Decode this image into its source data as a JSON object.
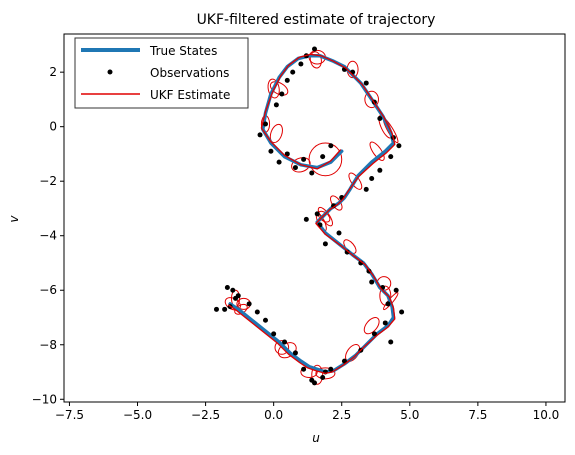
{
  "chart_data": {
    "type": "line",
    "title": "UKF-filtered estimate of trajectory",
    "xlabel": "u",
    "ylabel": "v",
    "xlim": [
      -7.7,
      10.7
    ],
    "ylim": [
      -10.1,
      3.4
    ],
    "xticks": [
      -7.5,
      -5.0,
      -2.5,
      0.0,
      2.5,
      5.0,
      7.5,
      10.0
    ],
    "xtick_labels": [
      "−7.5",
      "−5.0",
      "−2.5",
      "0.0",
      "2.5",
      "5.0",
      "7.5",
      "10.0"
    ],
    "yticks": [
      -10,
      -8,
      -6,
      -4,
      -2,
      0,
      2
    ],
    "ytick_labels": [
      "−10",
      "−8",
      "−6",
      "−4",
      "−2",
      "0",
      "2"
    ],
    "grid": false,
    "legend": {
      "placement": "upper left"
    },
    "series": [
      {
        "name": "True States",
        "kind": "line",
        "color": "#1f77b4",
        "x": [
          2.5,
          2.1,
          1.6,
          1.0,
          0.4,
          -0.1,
          -0.4,
          -0.3,
          -0.1,
          0.2,
          0.5,
          0.9,
          1.3,
          1.7,
          2.2,
          2.6,
          3.2,
          3.6,
          4.0,
          4.3,
          4.4,
          4.1,
          3.6,
          3.1,
          2.8,
          2.6,
          2.4,
          2.1,
          1.8,
          1.6,
          1.9,
          2.4,
          2.9,
          3.3,
          3.6,
          3.9,
          4.2,
          4.35,
          4.4,
          4.2,
          3.8,
          3.4,
          3.0,
          2.6,
          2.2,
          1.9,
          1.6,
          1.3,
          1.0,
          0.6,
          0.2,
          -0.3,
          -0.8,
          -1.3,
          -1.6
        ],
        "y": [
          -0.9,
          -1.3,
          -1.5,
          -1.4,
          -1.1,
          -0.6,
          -0.1,
          0.5,
          1.2,
          1.8,
          2.2,
          2.5,
          2.6,
          2.6,
          2.4,
          2.2,
          1.6,
          1.0,
          0.4,
          -0.2,
          -0.6,
          -0.9,
          -1.3,
          -1.8,
          -2.3,
          -2.6,
          -2.8,
          -3.0,
          -3.3,
          -3.5,
          -3.9,
          -4.3,
          -4.7,
          -5.0,
          -5.4,
          -5.9,
          -6.2,
          -6.6,
          -7.0,
          -7.3,
          -7.6,
          -8.0,
          -8.4,
          -8.7,
          -8.95,
          -9.0,
          -8.9,
          -8.8,
          -8.6,
          -8.3,
          -7.9,
          -7.5,
          -7.1,
          -6.7,
          -6.5
        ]
      },
      {
        "name": "Observations",
        "kind": "scatter",
        "color": "#000000",
        "x": [
          1.5,
          1.2,
          1.0,
          0.7,
          0.5,
          0.3,
          0.1,
          -0.3,
          -0.5,
          -0.1,
          0.2,
          0.5,
          0.8,
          1.1,
          1.4,
          1.8,
          2.1,
          2.6,
          2.9,
          3.4,
          3.7,
          3.9,
          4.4,
          4.6,
          4.3,
          3.9,
          3.6,
          3.4,
          2.5,
          2.2,
          1.6,
          1.2,
          1.7,
          2.4,
          1.9,
          2.7,
          3.2,
          3.5,
          3.6,
          4.0,
          4.5,
          4.2,
          4.7,
          4.1,
          3.7,
          4.3,
          3.2,
          2.6,
          2.1,
          1.8,
          1.4,
          1.1,
          1.5,
          1.9,
          0.8,
          0.4,
          0.0,
          -0.3,
          -0.6,
          -0.9,
          -1.3,
          -1.5,
          -1.8,
          -1.4,
          -1.6,
          -2.1,
          -1.7
        ],
        "y": [
          2.85,
          2.6,
          2.3,
          2.0,
          1.7,
          1.2,
          0.8,
          0.1,
          -0.3,
          -0.9,
          -1.3,
          -1.0,
          -1.5,
          -1.2,
          -1.7,
          -1.1,
          -0.7,
          2.1,
          2.0,
          1.6,
          0.9,
          0.3,
          -0.4,
          -0.7,
          -1.1,
          -1.6,
          -1.9,
          -2.3,
          -2.6,
          -2.9,
          -3.2,
          -3.4,
          -3.6,
          -3.9,
          -4.3,
          -4.6,
          -5.0,
          -5.3,
          -5.7,
          -5.9,
          -6.0,
          -6.5,
          -6.8,
          -7.2,
          -7.6,
          -7.9,
          -8.2,
          -8.6,
          -8.9,
          -9.2,
          -9.3,
          -8.9,
          -9.4,
          -9.0,
          -8.3,
          -7.9,
          -7.6,
          -7.1,
          -6.8,
          -6.5,
          -6.2,
          -6.0,
          -6.7,
          -6.3,
          -6.6,
          -6.7,
          -5.9
        ]
      },
      {
        "name": "UKF Estimate",
        "kind": "line",
        "color": "#e00000",
        "x": [
          2.45,
          2.1,
          1.6,
          1.0,
          0.4,
          -0.1,
          -0.45,
          -0.3,
          -0.05,
          0.25,
          0.55,
          0.95,
          1.35,
          1.75,
          2.2,
          2.65,
          3.25,
          3.65,
          4.05,
          4.35,
          4.45,
          4.15,
          3.65,
          3.1,
          2.75,
          2.55,
          2.35,
          2.05,
          1.75,
          1.55,
          1.9,
          2.45,
          2.95,
          3.35,
          3.65,
          3.95,
          4.25,
          4.4,
          4.45,
          4.2,
          3.8,
          3.35,
          2.95,
          2.55,
          2.15,
          1.9,
          1.55,
          1.25,
          0.95,
          0.55,
          0.15,
          -0.35,
          -0.85,
          -1.35,
          -1.65
        ],
        "y": [
          -0.85,
          -1.25,
          -1.55,
          -1.4,
          -1.05,
          -0.55,
          -0.05,
          0.55,
          1.25,
          1.85,
          2.25,
          2.55,
          2.65,
          2.6,
          2.4,
          2.15,
          1.55,
          0.95,
          0.35,
          -0.25,
          -0.65,
          -0.95,
          -1.35,
          -1.85,
          -2.35,
          -2.65,
          -2.85,
          -3.05,
          -3.35,
          -3.55,
          -3.95,
          -4.35,
          -4.75,
          -5.05,
          -5.45,
          -5.95,
          -6.25,
          -6.65,
          -7.05,
          -7.35,
          -7.65,
          -8.05,
          -8.45,
          -8.75,
          -9.0,
          -9.05,
          -8.95,
          -8.85,
          -8.65,
          -8.35,
          -7.95,
          -7.55,
          -7.15,
          -6.75,
          -6.55
        ]
      }
    ],
    "covariance_ellipses": {
      "color": "#e00000",
      "items": [
        {
          "cx": 1.9,
          "cy": -1.2,
          "rx": 0.6,
          "ry": 0.6,
          "angle": 0
        },
        {
          "cx": 0.1,
          "cy": -0.25,
          "rx": 0.2,
          "ry": 0.35,
          "angle": -20
        },
        {
          "cx": -0.3,
          "cy": 0.1,
          "rx": 0.15,
          "ry": 0.3,
          "angle": 0
        },
        {
          "cx": 1.0,
          "cy": -1.4,
          "rx": 0.35,
          "ry": 0.25,
          "angle": 20
        },
        {
          "cx": 0.0,
          "cy": 1.4,
          "rx": 0.2,
          "ry": 0.35,
          "angle": 10
        },
        {
          "cx": 0.2,
          "cy": 1.4,
          "rx": 0.35,
          "ry": 0.2,
          "angle": -30
        },
        {
          "cx": 1.6,
          "cy": 2.55,
          "rx": 0.3,
          "ry": 0.25,
          "angle": 0
        },
        {
          "cx": 1.55,
          "cy": 2.45,
          "rx": 0.2,
          "ry": 0.3,
          "angle": 10
        },
        {
          "cx": 2.9,
          "cy": 2.1,
          "rx": 0.2,
          "ry": 0.3,
          "angle": 0
        },
        {
          "cx": 3.6,
          "cy": 1.0,
          "rx": 0.25,
          "ry": 0.3,
          "angle": 0
        },
        {
          "cx": 4.1,
          "cy": 0.0,
          "rx": 0.15,
          "ry": 0.45,
          "angle": 25
        },
        {
          "cx": 4.3,
          "cy": -0.15,
          "rx": 0.1,
          "ry": 0.5,
          "angle": 30
        },
        {
          "cx": 3.8,
          "cy": -0.9,
          "rx": 0.15,
          "ry": 0.4,
          "angle": 35
        },
        {
          "cx": 3.0,
          "cy": -2.0,
          "rx": 0.15,
          "ry": 0.35,
          "angle": 35
        },
        {
          "cx": 2.3,
          "cy": -2.8,
          "rx": 0.15,
          "ry": 0.3,
          "angle": 35
        },
        {
          "cx": 1.9,
          "cy": -3.3,
          "rx": 0.15,
          "ry": 0.4,
          "angle": 35
        },
        {
          "cx": 1.85,
          "cy": -3.3,
          "rx": 0.25,
          "ry": 0.15,
          "angle": -40
        },
        {
          "cx": 1.75,
          "cy": -3.5,
          "rx": 0.12,
          "ry": 0.35,
          "angle": 25
        },
        {
          "cx": 2.8,
          "cy": -4.4,
          "rx": 0.15,
          "ry": 0.3,
          "angle": 40
        },
        {
          "cx": 4.05,
          "cy": -5.75,
          "rx": 0.25,
          "ry": 0.25,
          "angle": 0
        },
        {
          "cx": 4.1,
          "cy": -6.2,
          "rx": 0.2,
          "ry": 0.35,
          "angle": 0
        },
        {
          "cx": 4.3,
          "cy": -6.4,
          "rx": 0.08,
          "ry": 0.4,
          "angle": -40
        },
        {
          "cx": 3.6,
          "cy": -7.3,
          "rx": 0.2,
          "ry": 0.35,
          "angle": -40
        },
        {
          "cx": 2.9,
          "cy": -8.3,
          "rx": 0.2,
          "ry": 0.35,
          "angle": -35
        },
        {
          "cx": 1.9,
          "cy": -9.05,
          "rx": 0.35,
          "ry": 0.2,
          "angle": 0
        },
        {
          "cx": 1.3,
          "cy": -9.0,
          "rx": 0.3,
          "ry": 0.2,
          "angle": 0
        },
        {
          "cx": 1.6,
          "cy": -9.1,
          "rx": 0.2,
          "ry": 0.35,
          "angle": 0
        },
        {
          "cx": 0.5,
          "cy": -8.2,
          "rx": 0.35,
          "ry": 0.25,
          "angle": 30
        },
        {
          "cx": 0.3,
          "cy": -8.1,
          "rx": 0.25,
          "ry": 0.25,
          "angle": 0
        },
        {
          "cx": -1.1,
          "cy": -6.5,
          "rx": 0.25,
          "ry": 0.2,
          "angle": 0
        },
        {
          "cx": -1.5,
          "cy": -6.5,
          "rx": 0.3,
          "ry": 0.2,
          "angle": -30
        },
        {
          "cx": -1.4,
          "cy": -6.3,
          "rx": 0.15,
          "ry": 0.3,
          "angle": 0
        },
        {
          "cx": -1.2,
          "cy": -6.7,
          "rx": 0.25,
          "ry": 0.15,
          "angle": 30
        }
      ]
    }
  }
}
